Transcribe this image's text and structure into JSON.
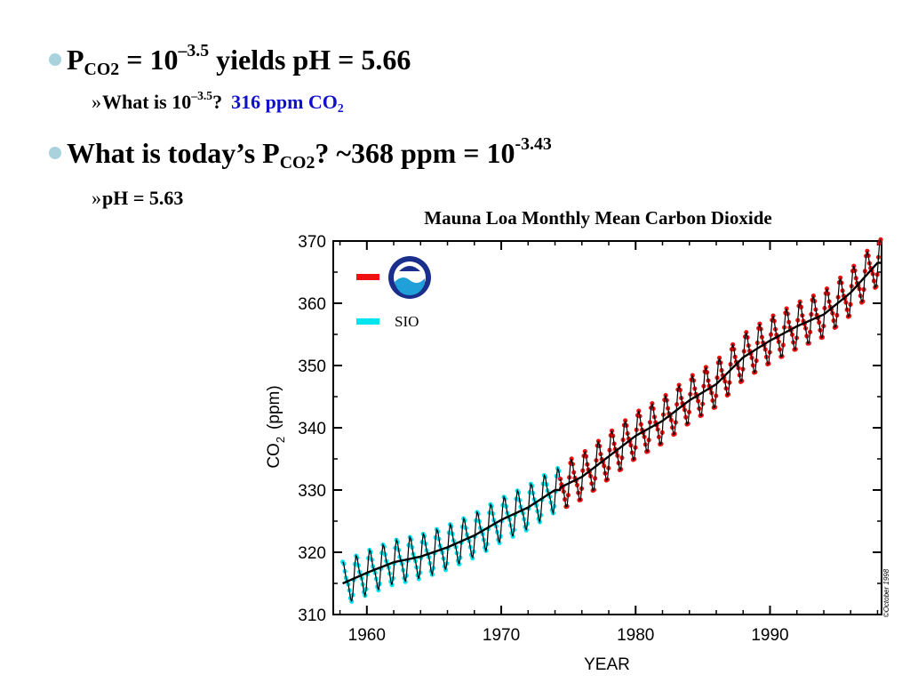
{
  "slide": {
    "bullet1": {
      "p": "P",
      "p_sub": "CO2",
      "mid": " = 10",
      "exp": "–3.5",
      "tail": " yields pH = 5.66"
    },
    "sub1": {
      "chev": "»",
      "text": "What is 10",
      "exp": "–3.5",
      "q": "?",
      "answer": "316 ppm CO",
      "answer_sub": "2"
    },
    "bullet2": {
      "text": "What is today’s P",
      "p_sub": "CO2",
      "mid": "? ~368 ppm = 10",
      "exp": "-3.43"
    },
    "sub2": {
      "chev": "»",
      "text": "pH = 5.63"
    }
  },
  "colors": {
    "bullet": "#a9d2dd",
    "answer": "#1010cc",
    "noaa": "#ee1111",
    "sio": "#00e5f0",
    "trend": "#000000"
  },
  "chart_data": {
    "type": "line",
    "title": "Mauna Loa Monthly Mean Carbon Dioxide",
    "xlabel": "YEAR",
    "ylabel_main": "CO",
    "ylabel_sub": "2",
    "ylabel_unit": "(ppm)",
    "xlim": [
      1957.5,
      1998.3
    ],
    "ylim": [
      310,
      370
    ],
    "x_ticks": [
      1960,
      1970,
      1980,
      1990
    ],
    "y_ticks": [
      310,
      320,
      330,
      340,
      350,
      360,
      370
    ],
    "grid": false,
    "legend_position": "top-left",
    "legend": [
      {
        "series": "NOAA",
        "label": "",
        "icon": "noaa-logo-icon"
      },
      {
        "series": "SIO",
        "label": "SIO"
      }
    ],
    "credit": "©October 1998",
    "series": [
      {
        "name": "SIO",
        "x_range": [
          1958.2,
          1974.4
        ],
        "trend_knots": [
          [
            1958,
            314.8
          ],
          [
            1960,
            316.7
          ],
          [
            1962,
            318.4
          ],
          [
            1964,
            319.3
          ],
          [
            1966,
            320.8
          ],
          [
            1968,
            322.7
          ],
          [
            1970,
            325.2
          ],
          [
            1972,
            327.2
          ],
          [
            1974,
            330.0
          ]
        ],
        "seasonal_amplitude_ppm": 3.0
      },
      {
        "name": "NOAA",
        "x_range": [
          1974.4,
          1998.3
        ],
        "trend_knots": [
          [
            1974,
            330.0
          ],
          [
            1976,
            332.1
          ],
          [
            1978,
            335.4
          ],
          [
            1980,
            338.7
          ],
          [
            1982,
            341.1
          ],
          [
            1984,
            344.4
          ],
          [
            1986,
            347.0
          ],
          [
            1988,
            351.3
          ],
          [
            1990,
            354.0
          ],
          [
            1992,
            356.3
          ],
          [
            1994,
            358.2
          ],
          [
            1996,
            361.7
          ],
          [
            1998,
            366.5
          ]
        ],
        "seasonal_amplitude_ppm": 3.2
      }
    ]
  }
}
